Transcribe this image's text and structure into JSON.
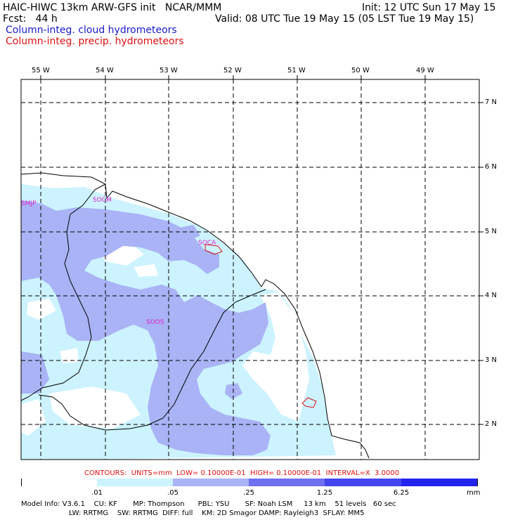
{
  "header": {
    "left1": "HAIC-HIWC 13km ARW-GFS init   NCAR/MMM",
    "right1": "Init: 12 UTC Sun 17 May 15",
    "left2": "Fcst:   44 h",
    "right2": "Valid: 08 UTC Tue 19 May 15 (05 LST Tue 19 May 15)",
    "legend_cloud": "Column-integ. cloud hydrometeors",
    "legend_precip": "Column-integ. precip. hydrometeors"
  },
  "map": {
    "lon_labels": [
      "55 W",
      "54 W",
      "53 W",
      "52 W",
      "51 W",
      "50 W",
      "49 W"
    ],
    "lat_labels": [
      "7 N",
      "6 N",
      "5 N",
      "4 N",
      "3 N",
      "2 N"
    ],
    "stations": [
      "SMJP",
      "SOCM",
      "SOCA",
      "SOOS"
    ],
    "colors": {
      "level1": "#ccf3ff",
      "level2": "#a9b3f5",
      "level3": "#6f6fef",
      "level4": "#2323ef",
      "precip": "#dd1111"
    }
  },
  "contours_line": "CONTOURS:  UNITS=mm  LOW= 0.10000E-01  HIGH= 0.10000E-01  INTERVAL=X  3.0000",
  "colorbar": {
    "labels": [
      ".01",
      ".05",
      ".25",
      "1.25",
      "6.25"
    ],
    "unit": "mm",
    "colors": [
      "#ffffff",
      "#ccf3ff",
      "#a9b3f5",
      "#6f6fef",
      "#4545ef",
      "#2323ef"
    ]
  },
  "footer": {
    "line1": "Model Info: V3.6.1    CU: KF       MP: Thompson      PBL: YSU       SF: Noah LSM     13 km    51 levels   60 sec",
    "line2": "LW: RRTMG    SW: RRTMG  DIFF: full    KM: 2D Smagor DAMP: Rayleigh3  SFLAY: MM5"
  }
}
